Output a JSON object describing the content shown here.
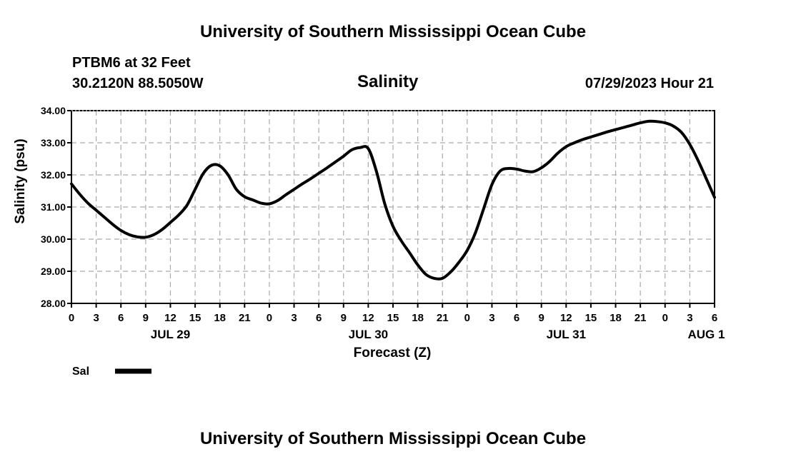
{
  "page": {
    "title_top": "University of Southern Mississippi Ocean Cube",
    "title_bottom": "University of Southern Mississippi Ocean Cube",
    "station_label": "PTBM6 at 32 Feet",
    "coordinates": "30.2120N  88.5050W",
    "datetime": "07/29/2023 Hour 21"
  },
  "chart_data": {
    "type": "line",
    "title": "Salinity",
    "xlabel": "Forecast (Z)",
    "ylabel": "Salinity (psu)",
    "ylim": [
      28,
      34
    ],
    "xlim": [
      0,
      78
    ],
    "x_unit": "hours since JUL 29 00Z",
    "grid": true,
    "legend": {
      "position": "bottom-left",
      "entries": [
        {
          "name": "Sal",
          "color": "#000000"
        }
      ]
    },
    "y_ticks": [
      {
        "value": 28,
        "label": "28.00"
      },
      {
        "value": 29,
        "label": "29.00"
      },
      {
        "value": 30,
        "label": "30.00"
      },
      {
        "value": 31,
        "label": "31.00"
      },
      {
        "value": 32,
        "label": "32.00"
      },
      {
        "value": 33,
        "label": "33.00"
      },
      {
        "value": 34,
        "label": "34.00"
      }
    ],
    "x_ticks": [
      {
        "value": 0,
        "label": "0"
      },
      {
        "value": 3,
        "label": "3"
      },
      {
        "value": 6,
        "label": "6"
      },
      {
        "value": 9,
        "label": "9"
      },
      {
        "value": 12,
        "label": "12"
      },
      {
        "value": 15,
        "label": "15"
      },
      {
        "value": 18,
        "label": "18"
      },
      {
        "value": 21,
        "label": "21"
      },
      {
        "value": 24,
        "label": "0"
      },
      {
        "value": 27,
        "label": "3"
      },
      {
        "value": 30,
        "label": "6"
      },
      {
        "value": 33,
        "label": "9"
      },
      {
        "value": 36,
        "label": "12"
      },
      {
        "value": 39,
        "label": "15"
      },
      {
        "value": 42,
        "label": "18"
      },
      {
        "value": 45,
        "label": "21"
      },
      {
        "value": 48,
        "label": "0"
      },
      {
        "value": 51,
        "label": "3"
      },
      {
        "value": 54,
        "label": "6"
      },
      {
        "value": 57,
        "label": "9"
      },
      {
        "value": 60,
        "label": "12"
      },
      {
        "value": 63,
        "label": "15"
      },
      {
        "value": 66,
        "label": "18"
      },
      {
        "value": 69,
        "label": "21"
      },
      {
        "value": 72,
        "label": "0"
      },
      {
        "value": 75,
        "label": "3"
      },
      {
        "value": 78,
        "label": "6"
      }
    ],
    "day_labels": [
      {
        "value": 12,
        "label": "JUL 29"
      },
      {
        "value": 36,
        "label": "JUL 30"
      },
      {
        "value": 60,
        "label": "JUL 31"
      },
      {
        "value": 77,
        "label": "AUG 1"
      }
    ],
    "series": [
      {
        "name": "Sal",
        "x": [
          0,
          1,
          2,
          3,
          4,
          5,
          6,
          7,
          8,
          9,
          10,
          11,
          12,
          13,
          14,
          15,
          16,
          17,
          18,
          19,
          20,
          21,
          22,
          23,
          24,
          25,
          26,
          27,
          28,
          29,
          30,
          31,
          32,
          33,
          34,
          35,
          36,
          37,
          38,
          39,
          40,
          41,
          42,
          43,
          44,
          45,
          46,
          47,
          48,
          49,
          50,
          51,
          52,
          53,
          54,
          55,
          56,
          57,
          58,
          59,
          60,
          61,
          62,
          63,
          64,
          65,
          66,
          67,
          68,
          69,
          70,
          71,
          72,
          73,
          74,
          75,
          76,
          77,
          78
        ],
        "values": [
          31.72,
          31.4,
          31.12,
          30.9,
          30.68,
          30.46,
          30.27,
          30.14,
          30.07,
          30.06,
          30.14,
          30.3,
          30.52,
          30.75,
          31.05,
          31.55,
          32.05,
          32.3,
          32.28,
          32.0,
          31.55,
          31.32,
          31.22,
          31.12,
          31.1,
          31.2,
          31.38,
          31.55,
          31.72,
          31.88,
          32.05,
          32.22,
          32.4,
          32.58,
          32.78,
          32.85,
          32.82,
          32.1,
          31.1,
          30.4,
          29.95,
          29.58,
          29.2,
          28.9,
          28.78,
          28.78,
          28.98,
          29.28,
          29.65,
          30.2,
          30.95,
          31.7,
          32.12,
          32.2,
          32.18,
          32.12,
          32.1,
          32.22,
          32.42,
          32.68,
          32.88,
          33.0,
          33.1,
          33.18,
          33.26,
          33.34,
          33.41,
          33.48,
          33.55,
          33.62,
          33.67,
          33.66,
          33.62,
          33.52,
          33.32,
          32.95,
          32.45,
          31.88,
          31.3
        ]
      }
    ]
  }
}
